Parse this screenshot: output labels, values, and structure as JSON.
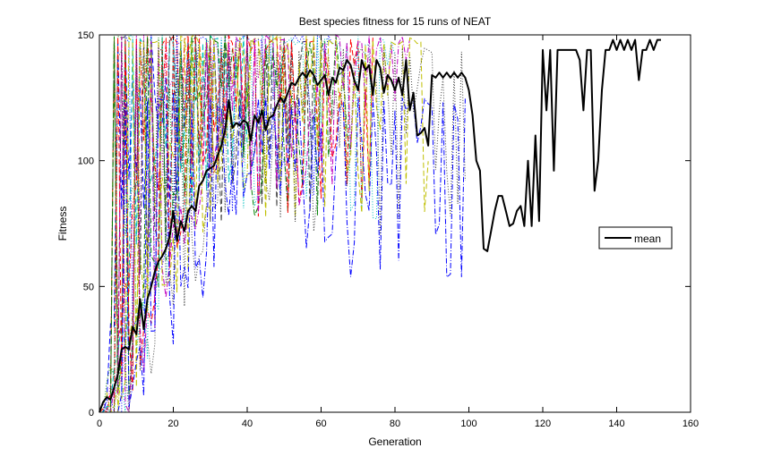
{
  "chart_data": {
    "type": "line",
    "title": "Best species fitness for 15 runs of NEAT",
    "xlabel": "Generation",
    "ylabel": "Fitness",
    "xlim": [
      0,
      160
    ],
    "ylim": [
      0,
      150
    ],
    "xticks": [
      0,
      20,
      40,
      60,
      80,
      100,
      120,
      140,
      160
    ],
    "yticks": [
      0,
      50,
      100,
      150
    ],
    "grid": false,
    "legend": {
      "entries": [
        "mean"
      ],
      "placement": "right"
    },
    "mean_color": "#000000",
    "run_colors": [
      "#0000ff",
      "#008000",
      "#ff0000",
      "#00bfbf",
      "#bf00bf",
      "#bfbf00",
      "#404040",
      "#0000ff",
      "#008000",
      "#ff0000",
      "#00bfbf",
      "#bf00bf",
      "#bfbf00",
      "#404040",
      "#0000ff"
    ],
    "run_styles": [
      "dash",
      "dot",
      "dashdot",
      "dash",
      "dot",
      "dashdot",
      "dash",
      "dot",
      "dashdot",
      "dash",
      "dot",
      "dashdot",
      "dash",
      "dot",
      "dashdot"
    ],
    "run_lengths": [
      22,
      28,
      33,
      40,
      45,
      52,
      58,
      63,
      68,
      74,
      80,
      84,
      89,
      99,
      99
    ],
    "run_plateaus": [
      150,
      150,
      150,
      150,
      150,
      150,
      150,
      150,
      150,
      150,
      150,
      150,
      150,
      145,
      125
    ],
    "series": [
      {
        "name": "mean",
        "x": [
          0,
          1,
          2,
          3,
          4,
          5,
          6,
          7,
          8,
          9,
          10,
          11,
          12,
          13,
          14,
          15,
          16,
          17,
          18,
          19,
          20,
          21,
          22,
          23,
          24,
          25,
          26,
          27,
          28,
          29,
          30,
          31,
          32,
          33,
          34,
          35,
          36,
          37,
          38,
          39,
          40,
          41,
          42,
          43,
          44,
          45,
          46,
          47,
          48,
          49,
          50,
          51,
          52,
          53,
          54,
          55,
          56,
          57,
          58,
          59,
          60,
          61,
          62,
          63,
          64,
          65,
          66,
          67,
          68,
          69,
          70,
          71,
          72,
          73,
          74,
          75,
          76,
          77,
          78,
          79,
          80,
          81,
          82,
          83,
          84,
          85,
          86,
          87,
          88,
          89,
          90,
          91,
          92,
          93,
          94,
          95,
          96,
          97,
          98,
          99,
          100,
          101,
          102,
          103,
          104,
          105,
          106,
          107,
          108,
          109,
          110,
          111,
          112,
          113,
          114,
          115,
          116,
          117,
          118,
          119,
          120,
          121,
          122,
          123,
          124,
          125,
          126,
          127,
          128,
          129,
          130,
          131,
          132,
          133,
          134,
          135,
          136,
          137,
          138,
          139,
          140,
          141,
          142,
          143,
          144,
          145,
          146,
          147,
          148,
          149,
          150,
          151,
          152
        ],
        "y": [
          0,
          4,
          6,
          5,
          10,
          15,
          25,
          26,
          25,
          34,
          31,
          45,
          33,
          45,
          50,
          56,
          60,
          62,
          65,
          70,
          80,
          68,
          76,
          72,
          80,
          82,
          80,
          90,
          92,
          96,
          97,
          98,
          102,
          106,
          112,
          124,
          113,
          115,
          114,
          116,
          115,
          108,
          118,
          115,
          120,
          112,
          117,
          118,
          122,
          125,
          123,
          127,
          131,
          130,
          133,
          135,
          133,
          136,
          134,
          130,
          132,
          134,
          126,
          133,
          131,
          137,
          136,
          140,
          138,
          132,
          128,
          140,
          136,
          138,
          126,
          140,
          137,
          127,
          134,
          132,
          128,
          133,
          126,
          140,
          120,
          127,
          110,
          111,
          113,
          106,
          134,
          133,
          135,
          133,
          135,
          133,
          135,
          133,
          135,
          133,
          128,
          118,
          100,
          96,
          65,
          64,
          72,
          80,
          86,
          86,
          80,
          74,
          75,
          80,
          82,
          74,
          100,
          74,
          110,
          76,
          144,
          120,
          144,
          96,
          144,
          144,
          144,
          144,
          144,
          144,
          140,
          120,
          144,
          144,
          88,
          100,
          128,
          144,
          144,
          148,
          144,
          148,
          144,
          148,
          144,
          148,
          132,
          144,
          144,
          148,
          144,
          148,
          148
        ]
      }
    ]
  }
}
